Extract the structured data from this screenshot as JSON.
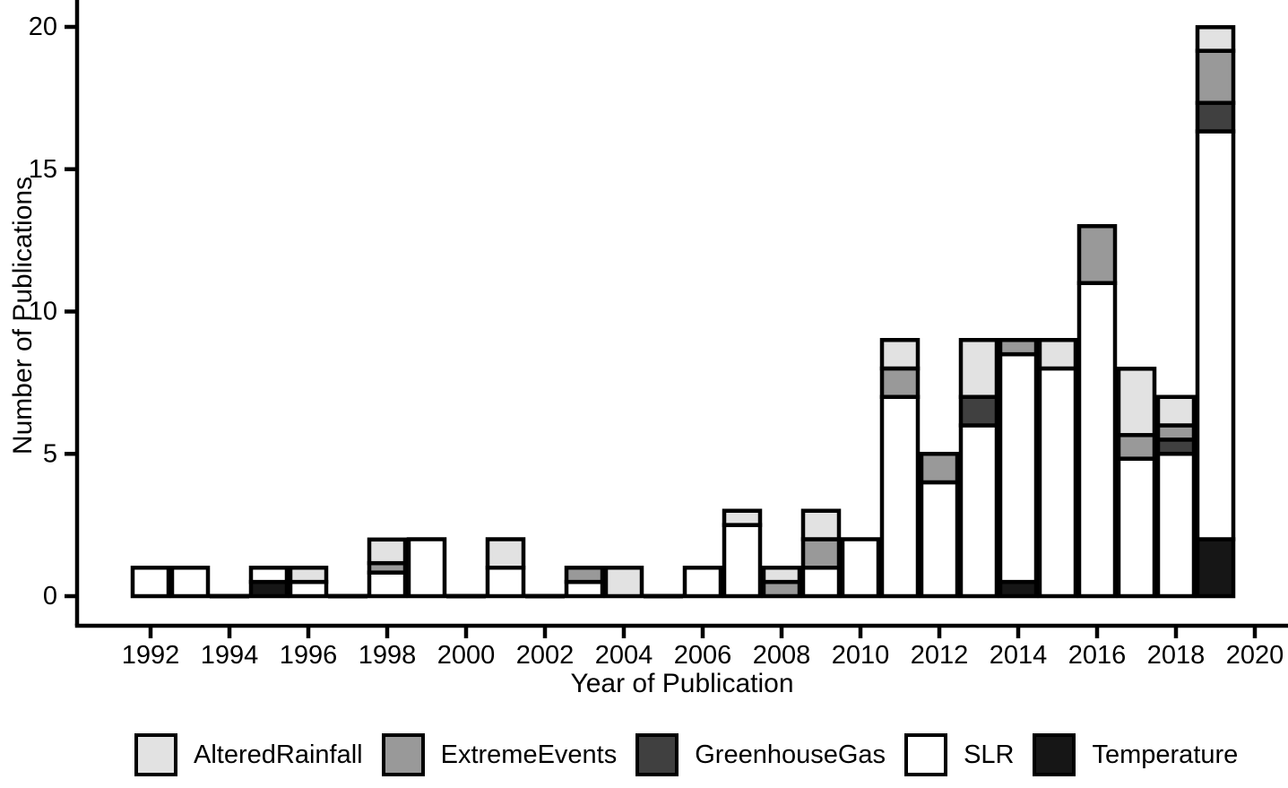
{
  "figure": {
    "background": "#ffffff",
    "border_color": "#000000"
  },
  "chart_data": {
    "type": "bar",
    "stacked": true,
    "title": "",
    "xlabel": "Year of Publication",
    "ylabel": "Number of Publications",
    "ylim": [
      0,
      20
    ],
    "yticks": [
      0,
      5,
      10,
      15,
      20
    ],
    "xticks": [
      1992,
      1994,
      1996,
      1998,
      2000,
      2002,
      2004,
      2006,
      2008,
      2010,
      2012,
      2014,
      2016,
      2018,
      2020
    ],
    "categories": [
      1992,
      1993,
      1994,
      1995,
      1996,
      1997,
      1998,
      1999,
      2000,
      2001,
      2002,
      2003,
      2004,
      2005,
      2006,
      2007,
      2008,
      2009,
      2010,
      2011,
      2012,
      2013,
      2014,
      2015,
      2016,
      2017,
      2018,
      2019
    ],
    "stack_order": "series listed bottom-to-top",
    "series": [
      {
        "name": "Temperature",
        "color": "#161616",
        "values": [
          0,
          0,
          0,
          0.5,
          0,
          0,
          0,
          0,
          0,
          0,
          0,
          0,
          0,
          0,
          0,
          0,
          0,
          0,
          0,
          0,
          0,
          0,
          0.5,
          0,
          0,
          0,
          0,
          2
        ]
      },
      {
        "name": "SLR",
        "color": "#ffffff",
        "values": [
          1,
          1,
          0,
          0.5,
          0.5,
          0,
          0.83,
          2,
          0,
          1,
          0,
          0.5,
          0,
          0,
          1,
          2.5,
          0,
          1,
          2,
          7,
          4,
          6,
          8,
          8,
          11,
          4.83,
          5,
          14.33
        ]
      },
      {
        "name": "GreenhouseGas",
        "color": "#404040",
        "values": [
          0,
          0,
          0,
          0,
          0,
          0,
          0,
          0,
          0,
          0,
          0,
          0,
          0,
          0,
          0,
          0,
          0,
          0,
          0,
          0,
          0,
          1,
          0,
          0,
          0,
          0,
          0.5,
          1
        ]
      },
      {
        "name": "ExtremeEvents",
        "color": "#999999",
        "values": [
          0,
          0,
          0,
          0,
          0,
          0,
          0.33,
          0,
          0,
          0,
          0,
          0.5,
          0,
          0,
          0,
          0,
          0.5,
          1,
          0,
          1,
          1,
          0,
          0.5,
          0,
          2,
          0.83,
          0.5,
          1.83
        ]
      },
      {
        "name": "AlteredRainfall",
        "color": "#e2e2e2",
        "values": [
          0,
          0,
          0,
          0,
          0.5,
          0,
          0.83,
          0,
          0,
          1,
          0,
          0,
          1,
          0,
          0,
          0.5,
          0.5,
          1,
          0,
          1,
          0,
          2,
          0,
          1,
          0,
          2.33,
          1,
          0.83
        ]
      }
    ],
    "bar_border_color": "#000000",
    "legend": {
      "position": "bottom",
      "entries": [
        {
          "label": "AlteredRainfall",
          "color": "#e2e2e2"
        },
        {
          "label": "ExtremeEvents",
          "color": "#999999"
        },
        {
          "label": "GreenhouseGas",
          "color": "#404040"
        },
        {
          "label": "SLR",
          "color": "#ffffff"
        },
        {
          "label": "Temperature",
          "color": "#161616"
        }
      ]
    }
  }
}
